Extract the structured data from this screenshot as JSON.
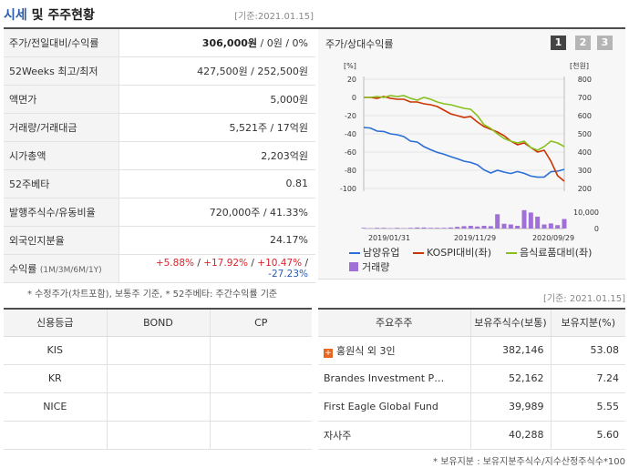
{
  "header": {
    "title_part1": "시세",
    "title_part2": "및 주주현황",
    "base_date": "[기준:2021.01.15]"
  },
  "price_rows": [
    {
      "label": "주가/전일대비/수익률",
      "value_main": "306,000원",
      "value_rest": " / 0원 / 0%"
    },
    {
      "label": "52Weeks 최고/최저",
      "value": "427,500원 / 252,500원"
    },
    {
      "label": "액면가",
      "value": "5,000원"
    },
    {
      "label": "거래량/거래대금",
      "value": "5,521주 / 17억원"
    },
    {
      "label": "시가총액",
      "value": "2,203억원"
    },
    {
      "label": "52주베타",
      "value": "0.81"
    },
    {
      "label": "발행주식수/유동비율",
      "value": "720,000주 / 41.33%"
    },
    {
      "label": "외국인지분율",
      "value": "24.17%"
    }
  ],
  "returns": {
    "label": "수익률",
    "label_small": "(1M/3M/6M/1Y)",
    "r1": "+5.88%",
    "r2": "+17.92%",
    "r3": "+10.47%",
    "r4": "-27.23%"
  },
  "note_price": "* 수정주가(차트포함), 보통주 기준, * 52주베타: 주간수익률 기준",
  "chart_panel": {
    "title": "주가/상대수익률",
    "tabs": [
      "1",
      "2",
      "3"
    ]
  },
  "chart_data": {
    "type": "line",
    "left_axis_unit": "[%]",
    "right_axis_unit": "[천원]",
    "left_ticks": [
      20,
      0,
      -20,
      -40,
      -60,
      -80,
      -100
    ],
    "right_ticks": [
      800,
      700,
      600,
      500,
      400,
      300,
      200
    ],
    "left_ylim": [
      -100,
      20
    ],
    "right_ylim": [
      200,
      800
    ],
    "volume_ticks": [
      "10,000",
      "0"
    ],
    "x_tick_labels": [
      "2019/01/31",
      "2019/11/29",
      "2020/09/29"
    ],
    "series": [
      {
        "name": "남양유업",
        "axis": "right",
        "color": "#2a6ed6",
        "values": [
          535,
          532,
          515,
          513,
          500,
          495,
          485,
          460,
          455,
          430,
          413,
          398,
          388,
          375,
          363,
          350,
          343,
          330,
          302,
          285,
          300,
          290,
          282,
          293,
          283,
          268,
          262,
          263,
          292,
          295,
          305
        ]
      },
      {
        "name": "KOSPI대비(좌)",
        "axis": "left",
        "color": "#cc3300",
        "values": [
          0,
          0,
          -1,
          1,
          -1,
          -2,
          -2,
          -5,
          -5,
          -7,
          -8,
          -10,
          -14,
          -18,
          -20,
          -22,
          -21,
          -27,
          -32,
          -35,
          -38,
          -42,
          -48,
          -52,
          -50,
          -55,
          -60,
          -58,
          -70,
          -86,
          -92
        ]
      },
      {
        "name": "음식료품대비(좌)",
        "axis": "left",
        "color": "#88c020",
        "values": [
          0,
          0,
          1,
          0,
          2,
          1,
          2,
          -1,
          -3,
          0,
          -2,
          -5,
          -7,
          -8,
          -10,
          -12,
          -13,
          -20,
          -30,
          -34,
          -40,
          -45,
          -48,
          -50,
          -48,
          -55,
          -58,
          -54,
          -48,
          -50,
          -54
        ]
      }
    ],
    "volume": {
      "name": "거래량",
      "color": "#a070d8",
      "values": [
        200,
        100,
        200,
        200,
        100,
        200,
        100,
        200,
        300,
        300,
        200,
        200,
        200,
        300,
        500,
        700,
        800,
        600,
        800,
        700,
        4200,
        1400,
        1200,
        800,
        5400,
        4700,
        3500,
        1200,
        1500,
        1000,
        2800
      ]
    },
    "volume_max": 10000
  },
  "legend": {
    "s1": "남양유업",
    "s2": "KOSPI대비(좌)",
    "s3": "음식료품대비(좌)",
    "vol": "거래량"
  },
  "base_date2": "[기준: 2021.01.15]",
  "credit": {
    "headers": [
      "신용등급",
      "BOND",
      "CP"
    ],
    "rows": [
      {
        "agency": "KIS",
        "bond": "",
        "cp": ""
      },
      {
        "agency": "KR",
        "bond": "",
        "cp": ""
      },
      {
        "agency": "NICE",
        "bond": "",
        "cp": ""
      },
      {
        "agency": "",
        "bond": "",
        "cp": ""
      }
    ]
  },
  "holders": {
    "headers": [
      "주요주주",
      "보유주식수(보통)",
      "보유지분(%)"
    ],
    "rows": [
      {
        "name": "홍원식 외 3인",
        "shares": "382,146",
        "pct": "53.08"
      },
      {
        "name": "Brandes Investment P…",
        "shares": "52,162",
        "pct": "7.24"
      },
      {
        "name": "First Eagle Global Fund",
        "shares": "39,989",
        "pct": "5.55"
      },
      {
        "name": "자사주",
        "shares": "40,288",
        "pct": "5.60"
      }
    ]
  },
  "note_holder": "* 보유지분 : 보유지분주식수/지수산정주식수*100"
}
